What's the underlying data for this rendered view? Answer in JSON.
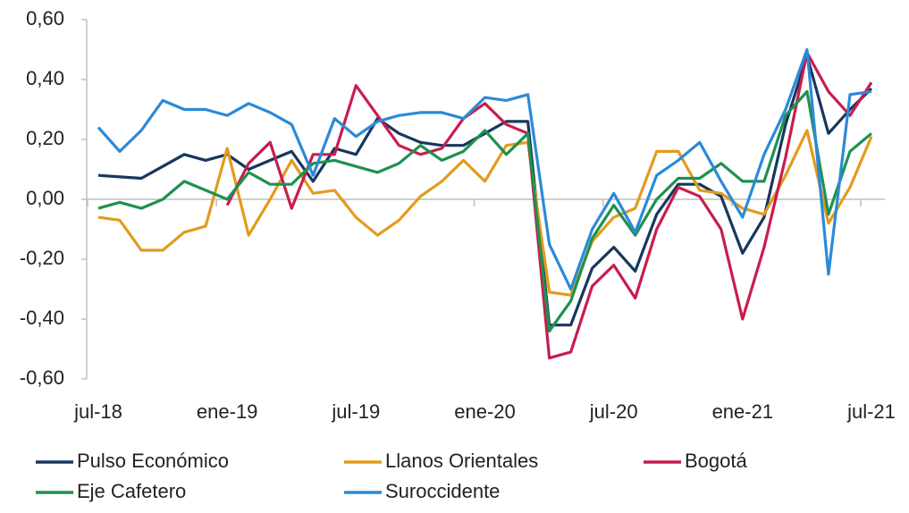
{
  "chart_data": {
    "type": "line",
    "categories": [
      "jul-18",
      null,
      null,
      null,
      null,
      null,
      "ene-19",
      null,
      null,
      null,
      null,
      null,
      "jul-19",
      null,
      null,
      null,
      null,
      null,
      "ene-20",
      null,
      null,
      null,
      null,
      null,
      "jul-20",
      null,
      null,
      null,
      null,
      null,
      "ene-21",
      null,
      null,
      null,
      null,
      null,
      "jul-21"
    ],
    "series": [
      {
        "name": "Pulso Económico",
        "color": "#17375e",
        "values": [
          0.08,
          0.075,
          0.07,
          0.11,
          0.15,
          0.13,
          0.15,
          0.1,
          0.13,
          0.16,
          0.06,
          0.17,
          0.15,
          0.27,
          0.22,
          0.19,
          0.18,
          0.18,
          0.22,
          0.26,
          0.26,
          -0.42,
          -0.42,
          -0.23,
          -0.16,
          -0.24,
          -0.05,
          0.05,
          0.05,
          0.01,
          -0.18,
          -0.06,
          0.25,
          0.48,
          0.22,
          0.3,
          0.37
        ]
      },
      {
        "name": "Llanos Orientales",
        "color": "#e39b1c",
        "values": [
          -0.06,
          -0.07,
          -0.17,
          -0.17,
          -0.11,
          -0.09,
          0.17,
          -0.12,
          0.0,
          0.13,
          0.02,
          0.03,
          -0.06,
          -0.12,
          -0.07,
          0.01,
          0.06,
          0.13,
          0.06,
          0.18,
          0.19,
          -0.31,
          -0.32,
          -0.14,
          -0.06,
          -0.03,
          0.16,
          0.16,
          0.03,
          0.02,
          -0.03,
          -0.05,
          0.08,
          0.23,
          -0.08,
          0.04,
          0.21
        ]
      },
      {
        "name": "Bogotá",
        "color": "#c81d4e",
        "values": [
          null,
          null,
          null,
          null,
          null,
          null,
          -0.02,
          0.12,
          0.19,
          -0.03,
          0.15,
          0.15,
          0.38,
          0.28,
          0.18,
          0.15,
          0.17,
          0.27,
          0.32,
          0.25,
          0.22,
          -0.53,
          -0.51,
          -0.29,
          -0.22,
          -0.33,
          -0.1,
          0.04,
          0.01,
          -0.1,
          -0.4,
          -0.16,
          0.14,
          0.49,
          0.36,
          0.28,
          0.39
        ]
      },
      {
        "name": "Eje Cafetero",
        "color": "#1e9150",
        "values": [
          -0.03,
          -0.01,
          -0.03,
          0.0,
          0.06,
          0.03,
          0.0,
          0.09,
          0.05,
          0.05,
          0.12,
          0.13,
          0.11,
          0.09,
          0.12,
          0.18,
          0.13,
          0.16,
          0.23,
          0.15,
          0.22,
          -0.44,
          -0.34,
          -0.13,
          -0.02,
          -0.12,
          0.0,
          0.07,
          0.07,
          0.12,
          0.06,
          0.06,
          0.28,
          0.36,
          -0.05,
          0.16,
          0.22
        ]
      },
      {
        "name": "Suroccidente",
        "color": "#2b8ad8",
        "values": [
          0.24,
          0.16,
          0.23,
          0.33,
          0.3,
          0.3,
          0.28,
          0.32,
          0.29,
          0.25,
          0.08,
          0.27,
          0.21,
          0.26,
          0.28,
          0.29,
          0.29,
          0.27,
          0.34,
          0.33,
          0.35,
          -0.15,
          -0.3,
          -0.1,
          0.02,
          -0.11,
          0.08,
          0.13,
          0.19,
          0.06,
          -0.06,
          0.15,
          0.3,
          0.5,
          -0.25,
          0.35,
          0.36
        ]
      }
    ],
    "ylim": [
      -0.6,
      0.6
    ],
    "yticks": [
      {
        "value": -0.6,
        "label": "-0,60"
      },
      {
        "value": -0.4,
        "label": "-0,40"
      },
      {
        "value": -0.2,
        "label": "-0,20"
      },
      {
        "value": 0,
        "label": "0,00"
      },
      {
        "value": 0.2,
        "label": "0,20"
      },
      {
        "value": 0.4,
        "label": "0,40"
      },
      {
        "value": 0.6,
        "label": "0,60"
      }
    ],
    "grid": false,
    "legend": "bottom"
  }
}
